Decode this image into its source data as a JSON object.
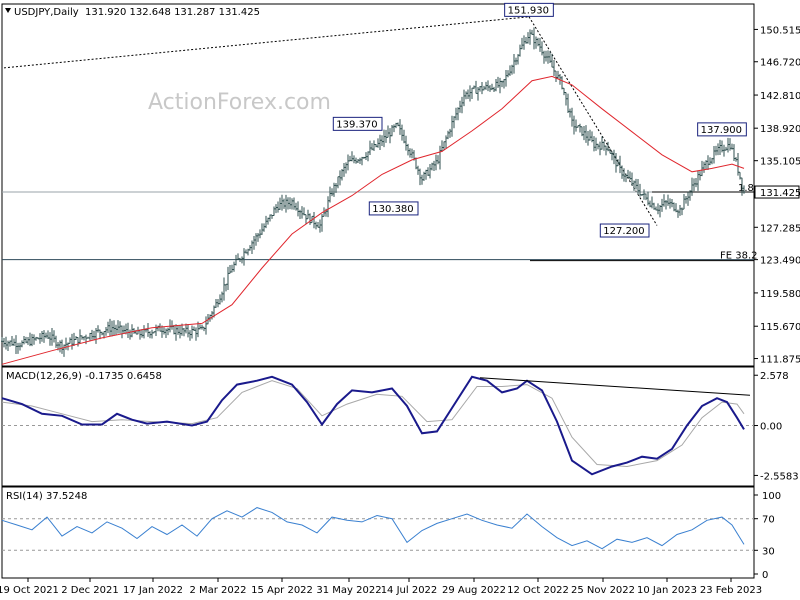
{
  "header": {
    "symbol": "USDJPY,Daily",
    "ohlc": "131.920 132.648 131.287 131.425"
  },
  "watermark": "ActionForex.com",
  "colors": {
    "price": "#2f4f4f",
    "ma": "#e0262d",
    "macd": "#1a1a8c",
    "signal": "#a8a8a8",
    "rsi": "#3a80d0",
    "level": "#2e4a5a"
  },
  "chart_data": [
    {
      "type": "candlestick",
      "title": "USDJPY,Daily",
      "ylim": [
        111.0,
        153.5
      ],
      "y_ticks": [
        "150.515",
        "146.720",
        "142.810",
        "138.920",
        "135.105",
        "131.425",
        "127.285",
        "123.490",
        "119.580",
        "115.670",
        "111.875"
      ],
      "x_ticks": [
        "19 Oct 2021",
        "2 Dec 2021",
        "17 Jan 2022",
        "2 Mar 2022",
        "15 Apr 2022",
        "31 May 2022",
        "14 Jul 2022",
        "29 Aug 2022",
        "12 Oct 2022",
        "25 Nov 2022",
        "10 Jan 2023",
        "23 Feb 2023"
      ],
      "price_path": [
        [
          0,
          113.9
        ],
        [
          20,
          113.6
        ],
        [
          45,
          114.6
        ],
        [
          60,
          113.4
        ],
        [
          90,
          114.8
        ],
        [
          110,
          115.5
        ],
        [
          135,
          114.7
        ],
        [
          160,
          115.4
        ],
        [
          185,
          115.0
        ],
        [
          200,
          115.2
        ],
        [
          215,
          118.5
        ],
        [
          230,
          122.5
        ],
        [
          245,
          124.8
        ],
        [
          260,
          127.0
        ],
        [
          275,
          129.8
        ],
        [
          290,
          130.3
        ],
        [
          305,
          128.5
        ],
        [
          318,
          127.5
        ],
        [
          330,
          131.5
        ],
        [
          345,
          134.8
        ],
        [
          360,
          135.6
        ],
        [
          375,
          136.9
        ],
        [
          395,
          139.2
        ],
        [
          405,
          137.0
        ],
        [
          420,
          133.0
        ],
        [
          435,
          135.0
        ],
        [
          450,
          139.5
        ],
        [
          462,
          142.8
        ],
        [
          475,
          143.5
        ],
        [
          490,
          143.8
        ],
        [
          500,
          144.0
        ],
        [
          515,
          147.5
        ],
        [
          527,
          150.0
        ],
        [
          538,
          148.5
        ],
        [
          548,
          146.5
        ],
        [
          560,
          144.0
        ],
        [
          570,
          139.5
        ],
        [
          580,
          138.5
        ],
        [
          592,
          137.0
        ],
        [
          605,
          136.8
        ],
        [
          618,
          134.0
        ],
        [
          630,
          132.5
        ],
        [
          645,
          130.5
        ],
        [
          655,
          129.5
        ],
        [
          665,
          130.2
        ],
        [
          678,
          129.3
        ],
        [
          690,
          132.0
        ],
        [
          705,
          135.0
        ],
        [
          718,
          136.5
        ],
        [
          728,
          137.0
        ],
        [
          735,
          134.5
        ],
        [
          742,
          131.4
        ]
      ],
      "ma_path": [
        [
          0,
          111.2
        ],
        [
          50,
          112.8
        ],
        [
          100,
          114.3
        ],
        [
          150,
          115.5
        ],
        [
          200,
          116.0
        ],
        [
          230,
          118.2
        ],
        [
          260,
          122.5
        ],
        [
          290,
          126.5
        ],
        [
          320,
          129.0
        ],
        [
          350,
          131.0
        ],
        [
          380,
          133.5
        ],
        [
          410,
          135.2
        ],
        [
          440,
          136.2
        ],
        [
          470,
          138.6
        ],
        [
          500,
          141.2
        ],
        [
          530,
          144.5
        ],
        [
          550,
          145.0
        ],
        [
          570,
          144.0
        ],
        [
          600,
          141.2
        ],
        [
          630,
          138.5
        ],
        [
          660,
          135.8
        ],
        [
          690,
          133.8
        ],
        [
          710,
          134.2
        ],
        [
          730,
          134.7
        ],
        [
          742,
          134.2
        ]
      ],
      "annotations": [
        {
          "label": "151.930",
          "x": 527,
          "y": 151.93
        },
        {
          "label": "139.370",
          "x": 390,
          "y": 139.37
        },
        {
          "label": "130.380",
          "x": 420,
          "y": 130.38
        },
        {
          "label": "127.200",
          "x": 650,
          "y": 127.2
        },
        {
          "label": "137.900",
          "x": 720,
          "y": 137.9
        }
      ],
      "levels": [
        {
          "y": 131.425,
          "label": "1.8"
        },
        {
          "y": 123.49,
          "label": "FE 38.2"
        }
      ],
      "last_price": "131.425"
    },
    {
      "type": "line",
      "title": "MACD(12,26,9) -0.1735 0.6458",
      "ylim": [
        -3.1,
        3.0
      ],
      "y_ticks": [
        "2.578",
        "0.00",
        "-2.5583"
      ],
      "macd_path": [
        [
          0,
          1.4
        ],
        [
          20,
          1.1
        ],
        [
          40,
          0.6
        ],
        [
          60,
          0.5
        ],
        [
          80,
          0.05
        ],
        [
          100,
          0.05
        ],
        [
          115,
          0.6
        ],
        [
          130,
          0.3
        ],
        [
          145,
          0.1
        ],
        [
          165,
          0.2
        ],
        [
          190,
          0.0
        ],
        [
          205,
          0.2
        ],
        [
          220,
          1.3
        ],
        [
          235,
          2.1
        ],
        [
          255,
          2.3
        ],
        [
          270,
          2.5
        ],
        [
          290,
          2.1
        ],
        [
          305,
          1.2
        ],
        [
          320,
          0.05
        ],
        [
          335,
          1.1
        ],
        [
          350,
          1.8
        ],
        [
          370,
          1.7
        ],
        [
          390,
          1.9
        ],
        [
          405,
          1.0
        ],
        [
          420,
          -0.4
        ],
        [
          435,
          -0.3
        ],
        [
          450,
          0.9
        ],
        [
          470,
          2.5
        ],
        [
          485,
          2.3
        ],
        [
          500,
          1.7
        ],
        [
          515,
          1.9
        ],
        [
          525,
          2.3
        ],
        [
          540,
          1.8
        ],
        [
          555,
          0.2
        ],
        [
          570,
          -1.8
        ],
        [
          590,
          -2.5
        ],
        [
          610,
          -2.1
        ],
        [
          625,
          -1.9
        ],
        [
          640,
          -1.6
        ],
        [
          655,
          -1.7
        ],
        [
          670,
          -1.2
        ],
        [
          685,
          0.0
        ],
        [
          700,
          1.0
        ],
        [
          715,
          1.4
        ],
        [
          725,
          1.2
        ],
        [
          735,
          0.4
        ],
        [
          742,
          -0.2
        ]
      ],
      "signal_path": [
        [
          0,
          1.2
        ],
        [
          30,
          1.0
        ],
        [
          60,
          0.6
        ],
        [
          90,
          0.2
        ],
        [
          120,
          0.3
        ],
        [
          150,
          0.2
        ],
        [
          190,
          0.1
        ],
        [
          215,
          0.4
        ],
        [
          240,
          1.7
        ],
        [
          270,
          2.3
        ],
        [
          295,
          1.9
        ],
        [
          320,
          0.5
        ],
        [
          345,
          1.1
        ],
        [
          375,
          1.6
        ],
        [
          400,
          1.5
        ],
        [
          425,
          0.2
        ],
        [
          450,
          0.3
        ],
        [
          475,
          2.0
        ],
        [
          500,
          2.0
        ],
        [
          525,
          2.1
        ],
        [
          550,
          1.4
        ],
        [
          570,
          -0.6
        ],
        [
          595,
          -2.0
        ],
        [
          625,
          -2.1
        ],
        [
          655,
          -1.8
        ],
        [
          680,
          -1.0
        ],
        [
          700,
          0.4
        ],
        [
          720,
          1.2
        ],
        [
          735,
          1.1
        ],
        [
          742,
          0.6
        ]
      ],
      "trendline": [
        [
          478,
          2.45
        ],
        [
          748,
          1.55
        ]
      ]
    },
    {
      "type": "line",
      "title": "RSI(14) 37.5248",
      "ylim": [
        0,
        100
      ],
      "y_ticks": [
        "100",
        "70",
        "30",
        "0"
      ],
      "rsi_path": [
        [
          0,
          68
        ],
        [
          15,
          62
        ],
        [
          30,
          56
        ],
        [
          45,
          72
        ],
        [
          60,
          48
        ],
        [
          75,
          60
        ],
        [
          90,
          52
        ],
        [
          105,
          66
        ],
        [
          120,
          58
        ],
        [
          135,
          45
        ],
        [
          150,
          60
        ],
        [
          165,
          50
        ],
        [
          180,
          62
        ],
        [
          195,
          48
        ],
        [
          210,
          70
        ],
        [
          225,
          80
        ],
        [
          240,
          72
        ],
        [
          255,
          84
        ],
        [
          270,
          78
        ],
        [
          285,
          66
        ],
        [
          300,
          62
        ],
        [
          315,
          52
        ],
        [
          330,
          72
        ],
        [
          345,
          68
        ],
        [
          360,
          66
        ],
        [
          375,
          74
        ],
        [
          390,
          70
        ],
        [
          405,
          40
        ],
        [
          420,
          55
        ],
        [
          435,
          64
        ],
        [
          450,
          70
        ],
        [
          465,
          76
        ],
        [
          480,
          68
        ],
        [
          495,
          62
        ],
        [
          510,
          58
        ],
        [
          525,
          76
        ],
        [
          540,
          60
        ],
        [
          555,
          46
        ],
        [
          570,
          36
        ],
        [
          585,
          42
        ],
        [
          600,
          32
        ],
        [
          615,
          44
        ],
        [
          630,
          40
        ],
        [
          645,
          46
        ],
        [
          660,
          36
        ],
        [
          675,
          50
        ],
        [
          690,
          56
        ],
        [
          705,
          68
        ],
        [
          720,
          72
        ],
        [
          730,
          62
        ],
        [
          742,
          37.5
        ]
      ],
      "levels": [
        70,
        30
      ]
    }
  ]
}
